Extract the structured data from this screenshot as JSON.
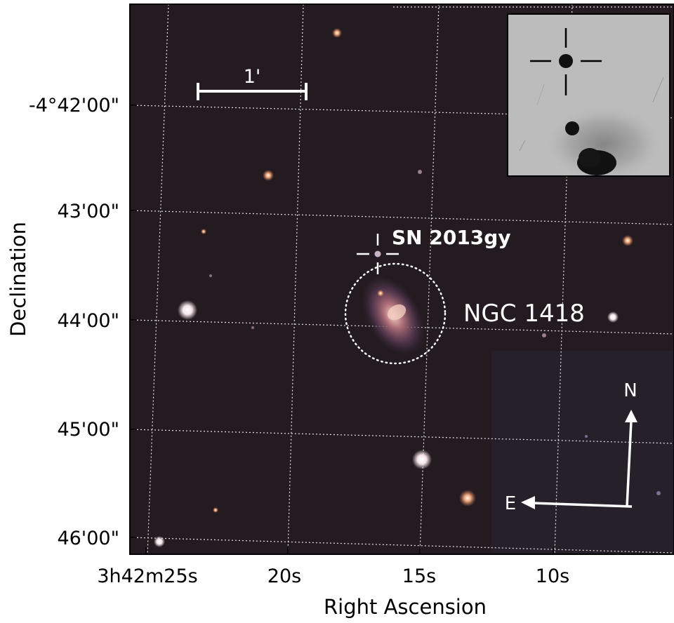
{
  "axes": {
    "xlabel": "Right Ascension",
    "ylabel": "Declination",
    "x_ticks": [
      "3h42m25s",
      "20s",
      "15s",
      "10s"
    ],
    "y_ticks": [
      "-4°42'00\"",
      "43'00\"",
      "44'00\"",
      "45'00\"",
      "46'00\""
    ]
  },
  "annotations": {
    "scale_bar": "1'",
    "supernova": "SN 2013gy",
    "galaxy": "NGC 1418",
    "north": "N",
    "east": "E"
  },
  "colors": {
    "sky": "#231b1f",
    "grid": "#e6e6e6",
    "overlay": "#ffffff",
    "inset_bg": "#bcbcbc"
  }
}
